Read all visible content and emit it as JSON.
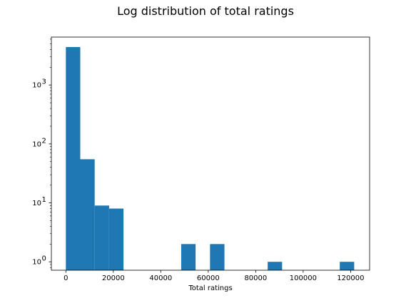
{
  "chart_data": {
    "type": "bar",
    "title": "Log distribution of total ratings",
    "xlabel": "Total ratings",
    "ylabel": "",
    "yscale": "log",
    "xlim": [
      -6100,
      128000
    ],
    "ylim": [
      0.72,
      6500
    ],
    "xticks": [
      0,
      20000,
      40000,
      60000,
      80000,
      100000,
      120000
    ],
    "xtick_labels": [
      "0",
      "20000",
      "40000",
      "60000",
      "80000",
      "100000",
      "120000"
    ],
    "yticks": [
      1,
      10,
      100,
      1000
    ],
    "ytick_labels": [
      "10",
      "10",
      "10",
      "10"
    ],
    "ytick_exponents": [
      "0",
      "1",
      "2",
      "3"
    ],
    "bin_start": 0,
    "bin_width": 6075,
    "counts": [
      4400,
      55,
      9,
      8,
      0,
      0,
      0,
      0,
      2,
      0,
      2,
      0,
      0,
      0,
      1,
      0,
      0,
      0,
      0,
      1
    ],
    "bar_color": "#1f77b4",
    "grid": false,
    "legend": "none"
  }
}
